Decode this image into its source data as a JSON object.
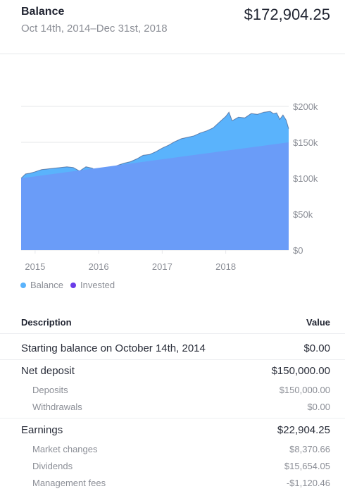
{
  "header": {
    "title": "Balance",
    "date_range": "Oct 14th, 2014–Dec 31st, 2018",
    "balance": "$172,904.25"
  },
  "colors": {
    "balance": "#5ab3fc",
    "invested": "#6a9cf8",
    "invested_dot": "#6a3ce8",
    "grid": "#e6e7ea",
    "axis_text": "#8b8e96"
  },
  "legend": {
    "balance": "Balance",
    "invested": "Invested"
  },
  "chart_data": {
    "type": "area",
    "y_ticks": [
      "$200k",
      "$150k",
      "$100k",
      "$50k",
      "$0"
    ],
    "y_tick_values": [
      200000,
      150000,
      100000,
      50000,
      0
    ],
    "x_ticks": [
      "2015",
      "2016",
      "2017",
      "2018"
    ],
    "x_tick_values": [
      2015.0,
      2016.0,
      2017.0,
      2018.0
    ],
    "xlim": [
      2014.78,
      2018.99
    ],
    "ylim": [
      0,
      200000
    ],
    "grid": true,
    "legend_position": "bottom-left",
    "series": [
      {
        "name": "Balance",
        "x": [
          2014.78,
          2014.85,
          2014.92,
          2015.0,
          2015.1,
          2015.2,
          2015.3,
          2015.4,
          2015.5,
          2015.6,
          2015.7,
          2015.8,
          2015.9,
          2016.0,
          2016.05,
          2016.1,
          2016.2,
          2016.3,
          2016.4,
          2016.5,
          2016.6,
          2016.7,
          2016.8,
          2016.9,
          2017.0,
          2017.1,
          2017.2,
          2017.3,
          2017.4,
          2017.5,
          2017.6,
          2017.7,
          2017.8,
          2017.9,
          2018.0,
          2018.05,
          2018.1,
          2018.2,
          2018.3,
          2018.4,
          2018.5,
          2018.6,
          2018.7,
          2018.75,
          2018.8,
          2018.85,
          2018.9,
          2018.95,
          2018.99
        ],
        "values": [
          100000,
          106000,
          107000,
          109000,
          112000,
          113000,
          114000,
          115000,
          116000,
          115000,
          110000,
          116000,
          114000,
          108000,
          104000,
          109000,
          114000,
          118000,
          121000,
          123000,
          127000,
          132000,
          133000,
          137000,
          142000,
          146000,
          151000,
          155000,
          157000,
          159000,
          163000,
          166000,
          170000,
          178000,
          186000,
          192000,
          180000,
          185000,
          184000,
          190000,
          189000,
          192000,
          193000,
          190000,
          191000,
          182000,
          188000,
          181000,
          169000
        ]
      },
      {
        "name": "Invested",
        "x": [
          2014.78,
          2018.99
        ],
        "values": [
          100000,
          150000
        ]
      }
    ]
  },
  "table": {
    "col_description": "Description",
    "col_value": "Value",
    "starting_label": "Starting balance on October 14th, 2014",
    "starting_value": "$0.00",
    "net_deposit_label": "Net deposit",
    "net_deposit_value": "$150,000.00",
    "deposits_label": "Deposits",
    "deposits_value": "$150,000.00",
    "withdrawals_label": "Withdrawals",
    "withdrawals_value": "$0.00",
    "earnings_label": "Earnings",
    "earnings_value": "$22,904.25",
    "market_label": "Market changes",
    "market_value": "$8,370.66",
    "dividends_label": "Dividends",
    "dividends_value": "$15,654.05",
    "fees_label": "Management fees",
    "fees_value": "-$1,120.46"
  }
}
